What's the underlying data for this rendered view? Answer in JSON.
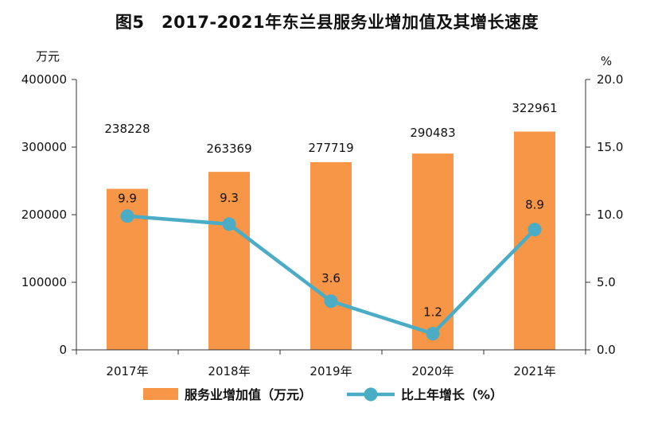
{
  "chart_data": {
    "type": "bar+line",
    "title": "图5　2017-2021年东兰县服务业增加值及其增长速度",
    "categories": [
      "2017年",
      "2018年",
      "2019年",
      "2020年",
      "2021年"
    ],
    "series": [
      {
        "name": "服务业增加值（万元）",
        "type": "bar",
        "axis": "left",
        "color": "#F79646",
        "values": [
          238228,
          263369,
          277719,
          290483,
          322961
        ]
      },
      {
        "name": "比上年增长（%）",
        "type": "line",
        "axis": "right",
        "color": "#4BACC6",
        "values": [
          9.9,
          9.3,
          3.6,
          1.2,
          8.9
        ]
      }
    ],
    "y_left": {
      "unit": "万元",
      "min": 0,
      "max": 400000,
      "ticks": [
        "0",
        "100000",
        "200000",
        "300000",
        "400000"
      ]
    },
    "y_right": {
      "unit": "%",
      "min": 0,
      "max": 20,
      "ticks": [
        "0.0",
        "5.0",
        "10.0",
        "15.0",
        "20.0"
      ]
    },
    "bar_labels": [
      "238228",
      "263369",
      "277719",
      "290483",
      "322961"
    ],
    "line_labels": [
      "9.9",
      "9.3",
      "3.6",
      "1.2",
      "8.9"
    ],
    "legend": {
      "placement": "bottom"
    },
    "grid": false
  }
}
